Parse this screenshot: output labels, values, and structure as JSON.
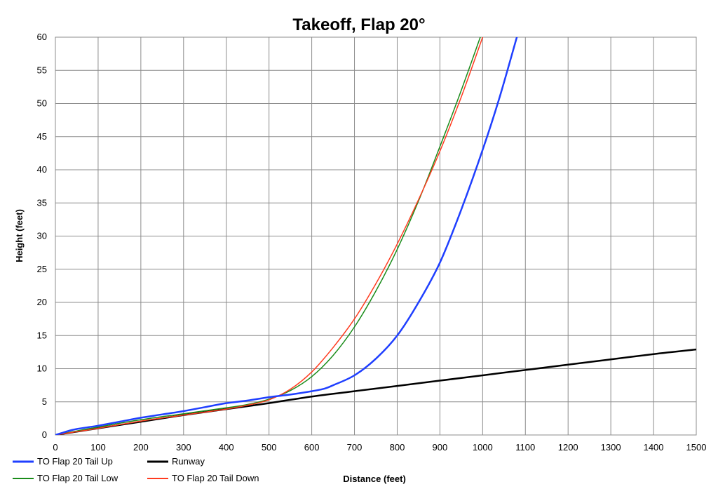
{
  "chart_data": {
    "type": "line",
    "title": "Takeoff, Flap 20°",
    "xlabel": "Distance (feet)",
    "ylabel": "Height (feet)",
    "xlim": [
      0,
      1500
    ],
    "ylim": [
      0,
      60
    ],
    "xticks": [
      "0",
      "100",
      "200",
      "300",
      "400",
      "500",
      "600",
      "700",
      "800",
      "900",
      "1000",
      "1100",
      "1200",
      "1300",
      "1400",
      "1500"
    ],
    "yticks": [
      "0",
      "5",
      "10",
      "15",
      "20",
      "25",
      "30",
      "35",
      "40",
      "45",
      "50",
      "55",
      "60"
    ],
    "grid": true,
    "legend_position": "bottom-left",
    "series": [
      {
        "name": "TO Flap 20 Tail Up",
        "color": "#1f3fff",
        "x": [
          0,
          15,
          30,
          50,
          100,
          150,
          200,
          250,
          300,
          350,
          400,
          450,
          500,
          550,
          600,
          630,
          650,
          700,
          750,
          800,
          850,
          900,
          950,
          1000,
          1040,
          1080
        ],
        "y": [
          0,
          0.3,
          0.6,
          0.9,
          1.4,
          2.0,
          2.6,
          3.1,
          3.6,
          4.2,
          4.8,
          5.2,
          5.7,
          6.1,
          6.6,
          7.0,
          7.5,
          9.0,
          11.5,
          15.0,
          20.0,
          26.0,
          34.0,
          43.0,
          51.0,
          60.0
        ]
      },
      {
        "name": "Runway",
        "color": "#000000",
        "x": [
          0,
          100,
          200,
          300,
          400,
          500,
          600,
          700,
          800,
          900,
          1000,
          1100,
          1200,
          1300,
          1400,
          1500
        ],
        "y": [
          0,
          1.0,
          2.0,
          3.0,
          3.9,
          4.8,
          5.8,
          6.6,
          7.4,
          8.2,
          9.0,
          9.8,
          10.6,
          11.4,
          12.2,
          12.9
        ]
      },
      {
        "name": "TO Flap 20 Tail Low",
        "color": "#1a8c1a",
        "x": [
          0,
          50,
          100,
          200,
          300,
          400,
          450,
          500,
          550,
          600,
          650,
          700,
          750,
          800,
          850,
          900,
          950,
          1000
        ],
        "y": [
          0,
          0.6,
          1.2,
          2.3,
          3.2,
          4.1,
          4.6,
          5.4,
          6.7,
          8.8,
          12.0,
          16.3,
          21.7,
          28.0,
          35.3,
          43.5,
          52.0,
          61.0
        ]
      },
      {
        "name": "TO Flap 20 Tail Down",
        "color": "#ff3b1f",
        "x": [
          0,
          50,
          100,
          200,
          300,
          400,
          450,
          500,
          550,
          600,
          650,
          700,
          750,
          800,
          850,
          900,
          950,
          1000
        ],
        "y": [
          0,
          0.5,
          1.0,
          2.1,
          3.0,
          3.9,
          4.5,
          5.3,
          6.9,
          9.5,
          13.2,
          17.5,
          22.8,
          28.8,
          35.5,
          42.8,
          51.0,
          60.0
        ]
      }
    ]
  }
}
